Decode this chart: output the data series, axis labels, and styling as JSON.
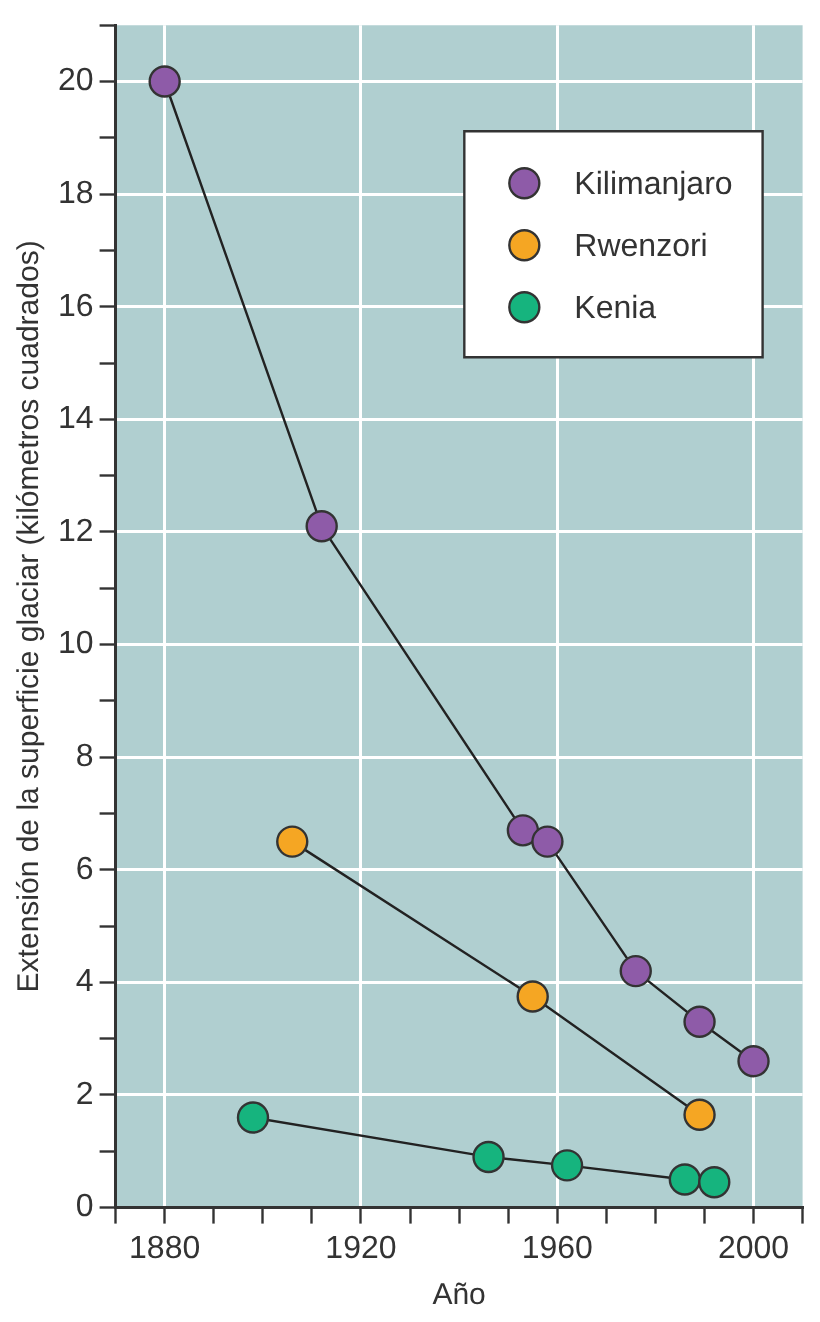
{
  "chart_data": {
    "type": "line",
    "xlabel": "Año",
    "ylabel": "Extensión de la superficie glaciar (kilómetros cuadrados)",
    "xlim": [
      1870,
      2010
    ],
    "xticks": [
      {
        "value": 1870,
        "label": null
      },
      1880,
      {
        "value": 1890,
        "label": null
      },
      {
        "value": 1900,
        "label": null
      },
      {
        "value": 1910,
        "label": null
      },
      1920,
      {
        "value": 1930,
        "label": null
      },
      {
        "value": 1940,
        "label": null
      },
      {
        "value": 1950,
        "label": null
      },
      1960,
      {
        "value": 1970,
        "label": null
      },
      {
        "value": 1980,
        "label": null
      },
      {
        "value": 1990,
        "label": null
      },
      2000,
      {
        "value": 2010,
        "label": null
      }
    ],
    "ylim": [
      0,
      21
    ],
    "yticks": [
      0,
      {
        "value": 1,
        "label": null
      },
      2,
      {
        "value": 3,
        "label": null
      },
      4,
      {
        "value": 5,
        "label": null
      },
      6,
      {
        "value": 7,
        "label": null
      },
      8,
      {
        "value": 9,
        "label": null
      },
      10,
      {
        "value": 11,
        "label": null
      },
      12,
      {
        "value": 13,
        "label": null
      },
      14,
      {
        "value": 15,
        "label": null
      },
      16,
      {
        "value": 17,
        "label": null
      },
      18,
      {
        "value": 19,
        "label": null
      },
      20,
      {
        "value": 21,
        "label": null
      }
    ],
    "grid": true,
    "legend": "top right",
    "marker": "circle",
    "line_style": "solid",
    "series": [
      {
        "name": "Kilimanjaro",
        "color": "#8e5ba8",
        "x": [
          1880,
          1912,
          1953,
          1958,
          1976,
          1989,
          2000
        ],
        "values": [
          20,
          12.1,
          6.7,
          6.5,
          4.2,
          3.3,
          2.6
        ]
      },
      {
        "name": "Rwenzori",
        "color": "#f5a623",
        "x": [
          1906,
          1955,
          1989
        ],
        "values": [
          6.5,
          3.75,
          1.65
        ]
      },
      {
        "name": "Kenia",
        "color": "#16b47e",
        "x": [
          1898,
          1946,
          1962,
          1986,
          1992
        ],
        "values": [
          1.6,
          0.9,
          0.75,
          0.5,
          0.45
        ]
      }
    ]
  }
}
